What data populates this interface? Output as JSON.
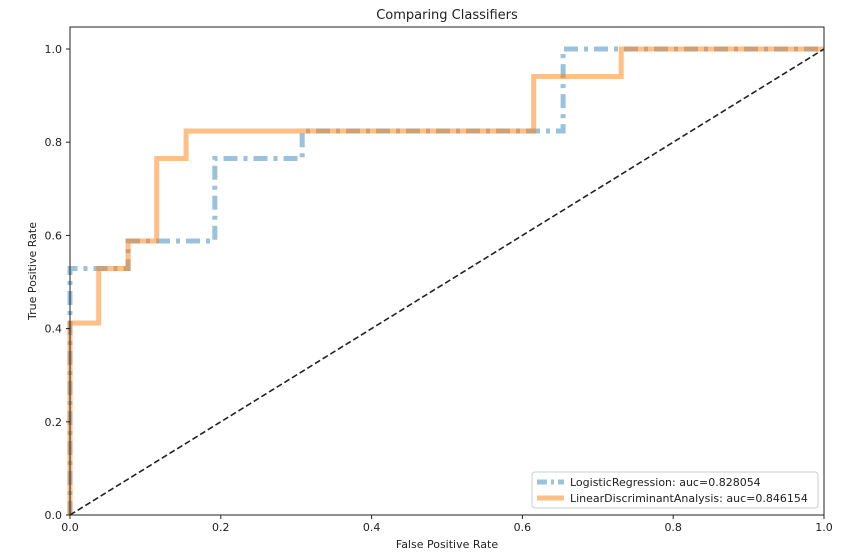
{
  "chart_data": {
    "type": "line",
    "title": "Comparing Classifiers",
    "xlabel": "False Positive Rate",
    "ylabel": "True Positive Rate",
    "xlim": [
      0.0,
      1.0
    ],
    "ylim": [
      0.0,
      1.0
    ],
    "xticks": [
      "0.0",
      "0.2",
      "0.4",
      "0.6",
      "0.8",
      "1.0"
    ],
    "yticks": [
      "0.0",
      "0.2",
      "0.4",
      "0.6",
      "0.8",
      "1.0"
    ],
    "grid": false,
    "legend_position": "lower right",
    "series": [
      {
        "name": "LogisticRegression: auc=0.828054",
        "color": "#1f77b4",
        "style": "dashdot",
        "x": [
          0.0,
          0.0,
          0.077,
          0.077,
          0.192,
          0.192,
          0.308,
          0.308,
          0.654,
          0.654,
          1.0
        ],
        "y": [
          0.0,
          0.529,
          0.529,
          0.588,
          0.588,
          0.765,
          0.765,
          0.824,
          0.824,
          1.0,
          1.0
        ]
      },
      {
        "name": "LinearDiscriminantAnalysis: auc=0.846154",
        "color": "#ff7f0e",
        "style": "solid",
        "x": [
          0.0,
          0.0,
          0.038,
          0.038,
          0.077,
          0.077,
          0.115,
          0.115,
          0.154,
          0.154,
          0.615,
          0.615,
          0.731,
          0.731,
          1.0
        ],
        "y": [
          0.0,
          0.412,
          0.412,
          0.529,
          0.529,
          0.588,
          0.588,
          0.765,
          0.765,
          0.824,
          0.824,
          0.941,
          0.941,
          1.0,
          1.0
        ]
      },
      {
        "name": "",
        "color": "#222222",
        "style": "dashed",
        "x": [
          0.0,
          1.0
        ],
        "y": [
          0.0,
          1.0
        ]
      }
    ]
  }
}
